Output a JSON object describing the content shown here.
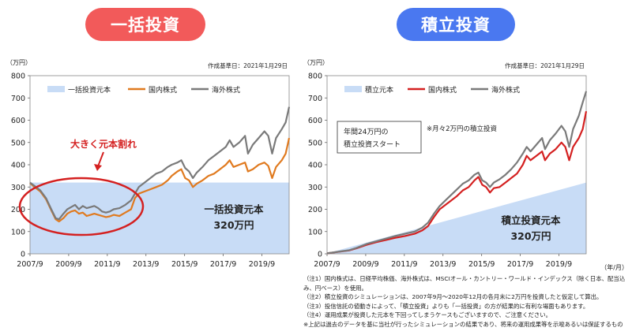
{
  "colors": {
    "principal_fill": "#c8dcf6",
    "domestic": "#e07a1f",
    "domestic_right": "#d42020",
    "foreign": "#7a7a7a",
    "pill_left": "#f25a5a",
    "pill_right": "#4a78f0",
    "callout": "#d42020"
  },
  "chart_data": [
    {
      "type": "line",
      "title": "一括投資",
      "as_of": "作成基準日：2021年1月29日",
      "ylabel": "（万円）",
      "ylim": [
        0,
        800
      ],
      "yticks": [
        "0",
        "100",
        "200",
        "300",
        "400",
        "500",
        "600",
        "700",
        "800"
      ],
      "xlim": [
        2007.67,
        2021.08
      ],
      "xticks": [
        {
          "x": 2007.67,
          "label": "2007/9"
        },
        {
          "x": 2009.67,
          "label": "2009/9"
        },
        {
          "x": 2011.67,
          "label": "2011/9"
        },
        {
          "x": 2013.67,
          "label": "2013/9"
        },
        {
          "x": 2015.67,
          "label": "2015/9"
        },
        {
          "x": 2017.67,
          "label": "2017/9"
        },
        {
          "x": 2019.67,
          "label": "2019/9"
        }
      ],
      "legend": [
        "一括投資元本",
        "国内株式",
        "海外株式"
      ],
      "principal": 320,
      "annotation_title": "大きく元本割れ",
      "annotation_label": "一括投資元本",
      "annotation_value": "320万円",
      "series": [
        {
          "name": "国内株式",
          "x": [
            2007.67,
            2007.9,
            2008.2,
            2008.5,
            2008.8,
            2009.0,
            2009.17,
            2009.4,
            2009.6,
            2009.8,
            2010.0,
            2010.2,
            2010.4,
            2010.6,
            2010.8,
            2011.0,
            2011.2,
            2011.4,
            2011.6,
            2011.8,
            2012.0,
            2012.3,
            2012.6,
            2012.9,
            2013.1,
            2013.3,
            2013.6,
            2013.9,
            2014.2,
            2014.5,
            2014.8,
            2015.0,
            2015.3,
            2015.5,
            2015.7,
            2015.9,
            2016.1,
            2016.3,
            2016.6,
            2016.9,
            2017.2,
            2017.5,
            2017.8,
            2018.0,
            2018.2,
            2018.5,
            2018.8,
            2018.95,
            2019.2,
            2019.5,
            2019.8,
            2020.0,
            2020.2,
            2020.4,
            2020.7,
            2020.9,
            2021.08
          ],
          "values": [
            318,
            300,
            280,
            245,
            190,
            155,
            145,
            160,
            180,
            190,
            195,
            180,
            185,
            170,
            175,
            180,
            175,
            170,
            165,
            168,
            175,
            170,
            185,
            200,
            250,
            270,
            280,
            290,
            300,
            310,
            330,
            350,
            370,
            380,
            340,
            330,
            300,
            315,
            330,
            350,
            360,
            380,
            400,
            420,
            390,
            400,
            410,
            370,
            380,
            400,
            410,
            395,
            340,
            390,
            420,
            450,
            520
          ]
        },
        {
          "name": "海外株式",
          "x": [
            2007.67,
            2007.9,
            2008.2,
            2008.5,
            2008.8,
            2009.0,
            2009.17,
            2009.4,
            2009.6,
            2009.8,
            2010.0,
            2010.2,
            2010.4,
            2010.6,
            2010.8,
            2011.0,
            2011.2,
            2011.4,
            2011.6,
            2011.8,
            2012.0,
            2012.3,
            2012.6,
            2012.9,
            2013.1,
            2013.3,
            2013.6,
            2013.9,
            2014.2,
            2014.5,
            2014.8,
            2015.0,
            2015.3,
            2015.5,
            2015.7,
            2015.9,
            2016.1,
            2016.3,
            2016.6,
            2016.9,
            2017.2,
            2017.5,
            2017.8,
            2018.0,
            2018.2,
            2018.5,
            2018.8,
            2018.95,
            2019.2,
            2019.5,
            2019.8,
            2020.0,
            2020.2,
            2020.4,
            2020.7,
            2020.9,
            2021.08
          ],
          "values": [
            320,
            305,
            285,
            250,
            195,
            160,
            155,
            180,
            200,
            210,
            220,
            200,
            215,
            205,
            210,
            215,
            205,
            190,
            185,
            190,
            200,
            205,
            220,
            240,
            270,
            300,
            320,
            340,
            360,
            370,
            390,
            400,
            410,
            420,
            385,
            370,
            340,
            365,
            390,
            420,
            440,
            460,
            480,
            510,
            480,
            500,
            530,
            450,
            490,
            520,
            550,
            530,
            450,
            520,
            560,
            590,
            660
          ]
        }
      ]
    },
    {
      "type": "line",
      "title": "積立投資",
      "as_of": "作成基準日：2021年1月29日",
      "ylabel": "（万円）",
      "xunit": "（年/月）",
      "ylim": [
        0,
        800
      ],
      "yticks": [
        "0",
        "100",
        "200",
        "300",
        "400",
        "500",
        "600",
        "700",
        "800"
      ],
      "xlim": [
        2007.67,
        2021.08
      ],
      "xticks": [
        {
          "x": 2007.67,
          "label": "2007/9"
        },
        {
          "x": 2009.67,
          "label": "2009/9"
        },
        {
          "x": 2011.67,
          "label": "2011/9"
        },
        {
          "x": 2013.67,
          "label": "2013/9"
        },
        {
          "x": 2015.67,
          "label": "2015/9"
        },
        {
          "x": 2017.67,
          "label": "2017/9"
        },
        {
          "x": 2019.67,
          "label": "2019/9"
        }
      ],
      "legend": [
        "積立元本",
        "国内株式",
        "海外株式"
      ],
      "principal_start": 2,
      "principal_end": 320,
      "box_text": [
        "年間24万円の",
        "積立投資スタート"
      ],
      "note_text": "※月々2万円の積立投資",
      "annotation_label": "積立投資元本",
      "annotation_value": "320万円",
      "series": [
        {
          "name": "国内株式",
          "x": [
            2007.67,
            2008.2,
            2008.8,
            2009.2,
            2009.7,
            2010.2,
            2010.7,
            2011.2,
            2011.7,
            2012.2,
            2012.6,
            2012.9,
            2013.2,
            2013.5,
            2013.8,
            2014.1,
            2014.4,
            2014.7,
            2015.0,
            2015.3,
            2015.5,
            2015.7,
            2015.9,
            2016.1,
            2016.3,
            2016.6,
            2016.9,
            2017.2,
            2017.5,
            2017.8,
            2018.0,
            2018.2,
            2018.5,
            2018.8,
            2018.95,
            2019.2,
            2019.5,
            2019.8,
            2020.0,
            2020.2,
            2020.4,
            2020.7,
            2020.9,
            2021.08
          ],
          "values": [
            2,
            8,
            15,
            25,
            40,
            52,
            62,
            72,
            80,
            90,
            105,
            125,
            165,
            200,
            220,
            240,
            260,
            285,
            300,
            330,
            345,
            310,
            300,
            275,
            295,
            300,
            320,
            340,
            360,
            400,
            440,
            420,
            440,
            460,
            420,
            450,
            470,
            500,
            480,
            420,
            480,
            520,
            560,
            640
          ]
        },
        {
          "name": "海外株式",
          "x": [
            2007.67,
            2008.2,
            2008.8,
            2009.2,
            2009.7,
            2010.2,
            2010.7,
            2011.2,
            2011.7,
            2012.2,
            2012.6,
            2012.9,
            2013.2,
            2013.5,
            2013.8,
            2014.1,
            2014.4,
            2014.7,
            2015.0,
            2015.3,
            2015.5,
            2015.7,
            2015.9,
            2016.1,
            2016.3,
            2016.6,
            2016.9,
            2017.2,
            2017.5,
            2017.8,
            2018.0,
            2018.2,
            2018.5,
            2018.8,
            2018.95,
            2019.2,
            2019.5,
            2019.8,
            2020.0,
            2020.2,
            2020.4,
            2020.7,
            2020.9,
            2021.08
          ],
          "values": [
            2,
            9,
            16,
            27,
            44,
            56,
            68,
            80,
            90,
            100,
            118,
            140,
            180,
            215,
            240,
            265,
            290,
            315,
            330,
            355,
            365,
            330,
            320,
            300,
            320,
            335,
            355,
            380,
            410,
            450,
            480,
            460,
            490,
            520,
            470,
            510,
            540,
            575,
            550,
            480,
            560,
            620,
            680,
            730
          ]
        }
      ]
    }
  ],
  "notes": [
    "（注1）国内株式は、日経平均株価、海外株式は、MSCIオール・カントリー・ワールド・インデックス（除く日本、配当込み、円ベース）を使用。",
    "（注2）積立投資のシミュレーションは、2007年9月～2020年12月の各月末に2万円を投資したと仮定して算出。",
    "（注3）投信信託の値動きによって、「積立投資」よりも「一括投資」の方が結果的に有利な場面もあります。",
    "（注4）運用成果が投資した元本を下回ってしまうケースもございますので、ご注意ください。",
    "※上記は過去のデータを基に当社が行ったシミュレーションの結果であり、将来の運用成果等を示唆あるいは保証するもの"
  ]
}
